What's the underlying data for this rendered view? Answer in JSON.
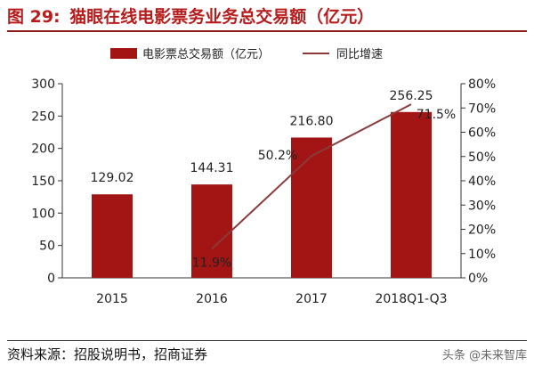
{
  "figure": {
    "number": "图 29:",
    "title": "猫眼在线电影票务业务总交易额（亿元）"
  },
  "source_note": "资料来源：招股说明书，招商证券",
  "watermark": "头条 @未来智库",
  "colors": {
    "bar": "#a31515",
    "line": "#8b3a3a",
    "title": "#b71c1c",
    "axis": "#333333"
  },
  "chart_data": {
    "type": "bar",
    "categories": [
      "2015",
      "2016",
      "2017",
      "2018Q1-Q3"
    ],
    "series": [
      {
        "name": "电影票总交易额（亿元）",
        "kind": "bar",
        "axis": "left",
        "values": [
          129.02,
          144.31,
          216.8,
          256.25
        ],
        "labels": [
          "129.02",
          "144.31",
          "216.80",
          "256.25"
        ]
      },
      {
        "name": "同比增速",
        "kind": "line",
        "axis": "right",
        "values": [
          null,
          11.9,
          50.2,
          71.5
        ],
        "labels": [
          "",
          "11.9%",
          "50.2%",
          "71.5%"
        ]
      }
    ],
    "y_left": {
      "min": 0,
      "max": 300,
      "ticks": [
        "0",
        "50",
        "100",
        "150",
        "200",
        "250",
        "300"
      ]
    },
    "y_right": {
      "min": 0,
      "max": 80,
      "ticks": [
        "0%",
        "10%",
        "20%",
        "30%",
        "40%",
        "50%",
        "60%",
        "70%",
        "80%"
      ]
    },
    "legend_position": "top",
    "grid": false
  }
}
